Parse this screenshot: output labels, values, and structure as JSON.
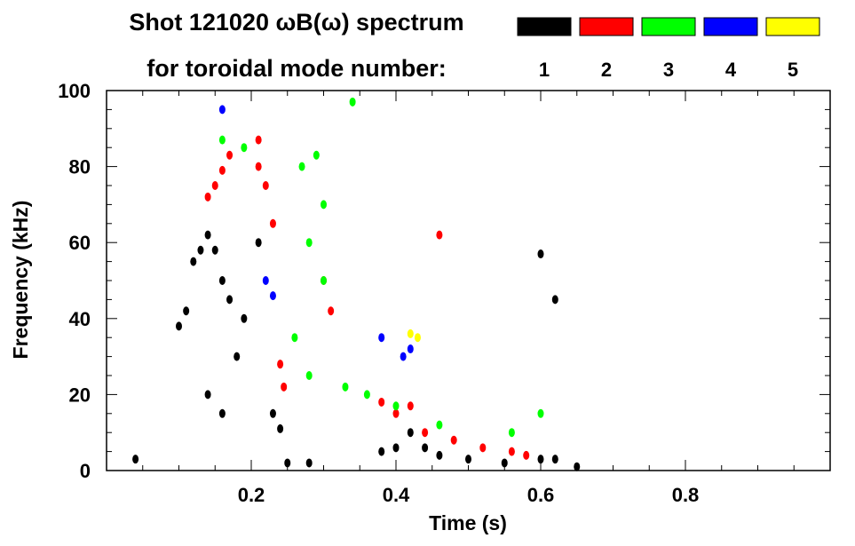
{
  "chart_data": {
    "type": "scatter",
    "title": "Shot 121020 ωB(ω) spectrum",
    "subtitle": "for toroidal mode number:",
    "xlabel": "Time (s)",
    "ylabel": "Frequency (kHz)",
    "xlim": [
      0.0,
      1.0
    ],
    "ylim": [
      0,
      100
    ],
    "xticks": [
      "0.2",
      "0.4",
      "0.6",
      "0.8"
    ],
    "xtick_values": [
      0.2,
      0.4,
      0.6,
      0.8
    ],
    "yticks": [
      "0",
      "20",
      "40",
      "60",
      "80",
      "100"
    ],
    "ytick_values": [
      0,
      20,
      40,
      60,
      80,
      100
    ],
    "grid": false,
    "legend_position": "top-right",
    "series": [
      {
        "name": "1",
        "color": "#000000",
        "points": [
          [
            0.04,
            3
          ],
          [
            0.1,
            38
          ],
          [
            0.11,
            42
          ],
          [
            0.12,
            55
          ],
          [
            0.13,
            58
          ],
          [
            0.14,
            62
          ],
          [
            0.15,
            58
          ],
          [
            0.16,
            50
          ],
          [
            0.17,
            45
          ],
          [
            0.18,
            30
          ],
          [
            0.14,
            20
          ],
          [
            0.16,
            15
          ],
          [
            0.19,
            40
          ],
          [
            0.21,
            60
          ],
          [
            0.23,
            15
          ],
          [
            0.24,
            11
          ],
          [
            0.25,
            2
          ],
          [
            0.28,
            2
          ],
          [
            0.38,
            5
          ],
          [
            0.4,
            6
          ],
          [
            0.42,
            10
          ],
          [
            0.44,
            6
          ],
          [
            0.46,
            4
          ],
          [
            0.5,
            3
          ],
          [
            0.55,
            2
          ],
          [
            0.6,
            3
          ],
          [
            0.62,
            3
          ],
          [
            0.65,
            1
          ],
          [
            0.6,
            57
          ],
          [
            0.62,
            45
          ]
        ]
      },
      {
        "name": "2",
        "color": "#ff0000",
        "points": [
          [
            0.14,
            72
          ],
          [
            0.15,
            75
          ],
          [
            0.16,
            79
          ],
          [
            0.17,
            83
          ],
          [
            0.21,
            87
          ],
          [
            0.21,
            80
          ],
          [
            0.22,
            75
          ],
          [
            0.23,
            65
          ],
          [
            0.24,
            28
          ],
          [
            0.245,
            22
          ],
          [
            0.3,
            50
          ],
          [
            0.31,
            42
          ],
          [
            0.38,
            18
          ],
          [
            0.4,
            15
          ],
          [
            0.42,
            17
          ],
          [
            0.44,
            10
          ],
          [
            0.48,
            8
          ],
          [
            0.52,
            6
          ],
          [
            0.56,
            5
          ],
          [
            0.58,
            4
          ],
          [
            0.46,
            62
          ]
        ]
      },
      {
        "name": "3",
        "color": "#00ff00",
        "points": [
          [
            0.16,
            87
          ],
          [
            0.19,
            85
          ],
          [
            0.27,
            80
          ],
          [
            0.29,
            83
          ],
          [
            0.3,
            70
          ],
          [
            0.28,
            60
          ],
          [
            0.3,
            50
          ],
          [
            0.26,
            35
          ],
          [
            0.28,
            25
          ],
          [
            0.33,
            22
          ],
          [
            0.36,
            20
          ],
          [
            0.4,
            17
          ],
          [
            0.46,
            12
          ],
          [
            0.6,
            15
          ],
          [
            0.56,
            10
          ],
          [
            0.34,
            97
          ]
        ]
      },
      {
        "name": "4",
        "color": "#0000ff",
        "points": [
          [
            0.16,
            95
          ],
          [
            0.22,
            50
          ],
          [
            0.23,
            46
          ],
          [
            0.38,
            35
          ],
          [
            0.42,
            32
          ],
          [
            0.41,
            30
          ]
        ]
      },
      {
        "name": "5",
        "color": "#ffff00",
        "points": [
          [
            0.42,
            36
          ],
          [
            0.43,
            35
          ]
        ]
      }
    ]
  }
}
